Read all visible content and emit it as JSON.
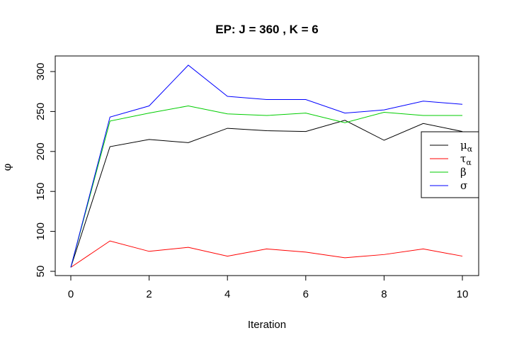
{
  "chart_data": {
    "type": "line",
    "title": "EP: J = 360 , K = 6",
    "xlabel": "Iteration",
    "ylabel": "φ",
    "xlim": [
      0,
      10
    ],
    "ylim": [
      50,
      310
    ],
    "x_ticks": [
      "0",
      "2",
      "4",
      "6",
      "8",
      "10"
    ],
    "y_ticks": [
      "50",
      "100",
      "150",
      "200",
      "250",
      "300"
    ],
    "x": [
      0,
      1,
      2,
      3,
      4,
      5,
      6,
      7,
      8,
      9,
      10
    ],
    "grid": false,
    "legend_position": "right",
    "series": [
      {
        "name": "μ",
        "subscript": "α",
        "color": "#000000",
        "values": [
          55,
          206,
          215,
          211,
          229,
          226,
          225,
          239,
          214,
          235,
          225
        ]
      },
      {
        "name": "τ",
        "subscript": "α",
        "color": "#ff0000",
        "values": [
          55,
          88,
          75,
          80,
          69,
          78,
          74,
          67,
          71,
          78,
          69
        ]
      },
      {
        "name": "β",
        "subscript": "",
        "color": "#00cd00",
        "values": [
          55,
          238,
          248,
          257,
          247,
          245,
          248,
          236,
          249,
          245,
          245
        ]
      },
      {
        "name": "σ",
        "subscript": "",
        "color": "#0000ff",
        "values": [
          55,
          243,
          257,
          308,
          269,
          265,
          265,
          248,
          252,
          263,
          259
        ]
      }
    ]
  }
}
